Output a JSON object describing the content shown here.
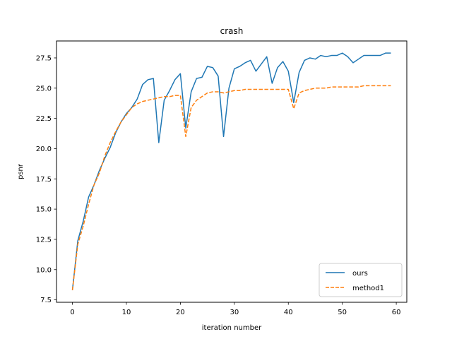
{
  "chart_data": {
    "type": "line",
    "title": "crash",
    "xlabel": "iteration number",
    "ylabel": "psnr",
    "xlim": [
      -2.95,
      61.95
    ],
    "ylim": [
      7.3,
      28.9
    ],
    "xticks": [
      0,
      10,
      20,
      30,
      40,
      50,
      60
    ],
    "yticks": [
      7.5,
      10.0,
      12.5,
      15.0,
      17.5,
      20.0,
      22.5,
      25.0,
      27.5
    ],
    "ytick_labels": [
      "7.5",
      "10.0",
      "12.5",
      "15.0",
      "17.5",
      "20.0",
      "22.5",
      "25.0",
      "27.5"
    ],
    "grid": false,
    "legend_position": "lower-right",
    "series": [
      {
        "name": "ours",
        "color": "#1f77b4",
        "style": "solid",
        "x": [
          0,
          1,
          2,
          3,
          4,
          5,
          6,
          7,
          8,
          9,
          10,
          11,
          12,
          13,
          14,
          15,
          16,
          17,
          18,
          19,
          20,
          21,
          22,
          23,
          24,
          25,
          26,
          27,
          28,
          29,
          30,
          31,
          32,
          33,
          34,
          35,
          36,
          37,
          38,
          39,
          40,
          41,
          42,
          43,
          44,
          45,
          46,
          47,
          48,
          49,
          50,
          51,
          52,
          53,
          54,
          55,
          56,
          57,
          58,
          59
        ],
        "values": [
          8.3,
          12.4,
          14.0,
          16.0,
          17.0,
          18.2,
          19.2,
          20.1,
          21.3,
          22.2,
          22.9,
          23.4,
          24.1,
          25.3,
          25.7,
          25.8,
          20.5,
          24.0,
          24.8,
          25.7,
          26.2,
          21.7,
          24.7,
          25.8,
          25.9,
          26.8,
          26.7,
          26.0,
          21.0,
          25.0,
          26.6,
          26.8,
          27.1,
          27.3,
          26.4,
          27.0,
          27.6,
          25.4,
          26.7,
          27.2,
          26.4,
          23.8,
          26.3,
          27.3,
          27.5,
          27.4,
          27.7,
          27.6,
          27.7,
          27.7,
          27.9,
          27.6,
          27.1,
          27.4,
          27.7,
          27.7,
          27.7,
          27.7,
          27.9,
          27.9
        ]
      },
      {
        "name": "method1",
        "color": "#ff7f0e",
        "style": "dashed",
        "x": [
          0,
          1,
          2,
          3,
          4,
          5,
          6,
          7,
          8,
          9,
          10,
          11,
          12,
          13,
          14,
          15,
          16,
          17,
          18,
          19,
          20,
          21,
          22,
          23,
          24,
          25,
          26,
          27,
          28,
          29,
          30,
          31,
          32,
          33,
          34,
          35,
          36,
          37,
          38,
          39,
          40,
          41,
          42,
          43,
          44,
          45,
          46,
          47,
          48,
          49,
          50,
          51,
          52,
          53,
          54,
          55,
          56,
          57,
          58,
          59
        ],
        "values": [
          8.3,
          12.1,
          13.6,
          15.4,
          17.0,
          18.0,
          19.4,
          20.5,
          21.4,
          22.2,
          22.8,
          23.4,
          23.7,
          23.9,
          24.0,
          24.1,
          24.2,
          24.3,
          24.3,
          24.4,
          24.4,
          21.0,
          23.4,
          24.0,
          24.3,
          24.6,
          24.7,
          24.7,
          24.6,
          24.7,
          24.8,
          24.8,
          24.9,
          24.9,
          24.9,
          24.9,
          24.9,
          24.9,
          24.9,
          24.9,
          24.9,
          23.3,
          24.6,
          24.8,
          24.9,
          25.0,
          25.0,
          25.0,
          25.1,
          25.1,
          25.1,
          25.1,
          25.1,
          25.1,
          25.2,
          25.2,
          25.2,
          25.2,
          25.2,
          25.2
        ]
      }
    ]
  }
}
